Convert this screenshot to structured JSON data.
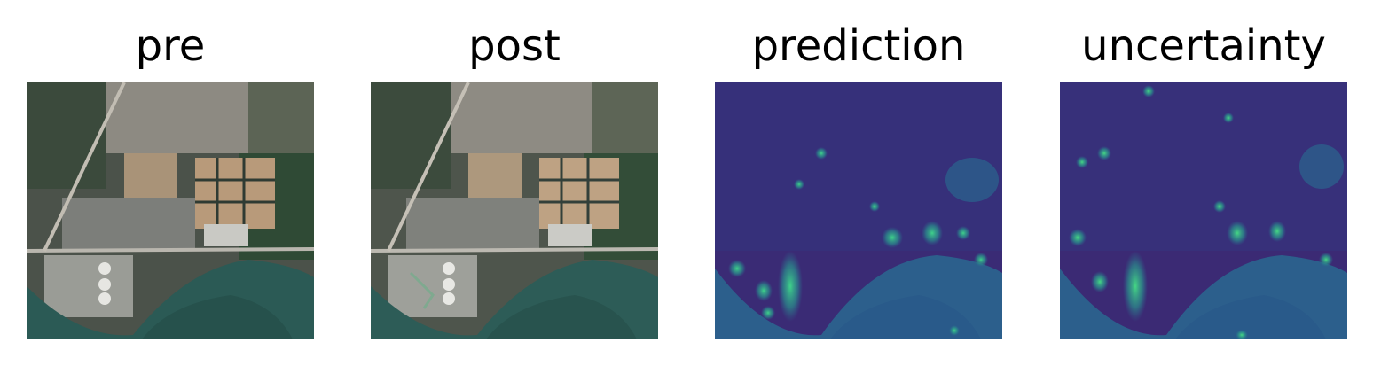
{
  "figure": {
    "panels": [
      {
        "title": "pre",
        "kind": "rgb"
      },
      {
        "title": "post",
        "kind": "rgb"
      },
      {
        "title": "prediction",
        "kind": "heatmap"
      },
      {
        "title": "uncertainty",
        "kind": "heatmap"
      }
    ]
  },
  "colors": {
    "background": "#ffffff",
    "water": "#2b5a55",
    "urban": "#8a8a84",
    "vegetation": "#2f4a35",
    "bare_soil": "#b89a7a",
    "heat_low": "#3b1a6e",
    "heat_mid": "#2a6f8f",
    "heat_high": "#3fd28a"
  }
}
